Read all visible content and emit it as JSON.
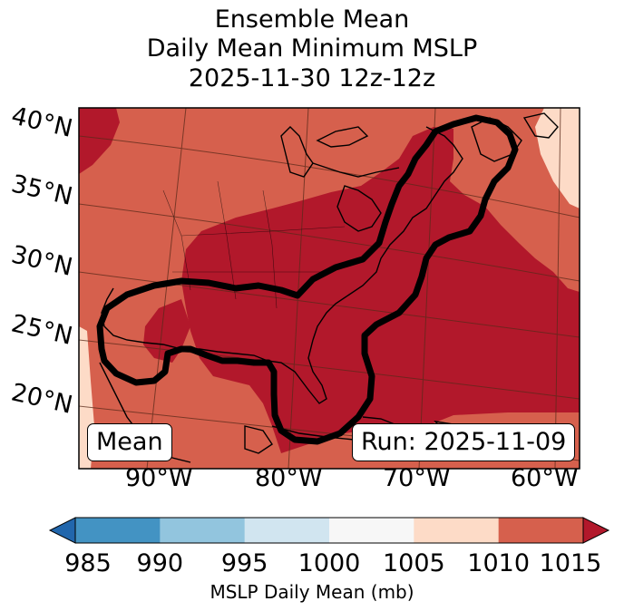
{
  "title": {
    "line1": "Ensemble Mean",
    "line2": "Daily Mean Minimum MSLP",
    "line3": "2025-11-30 12z-12z"
  },
  "map": {
    "lat_labels": [
      "40°N",
      "35°N",
      "30°N",
      "25°N",
      "20°N"
    ],
    "lon_labels": [
      "90°W",
      "80°W",
      "70°W",
      "60°W"
    ],
    "mean_box": "Mean",
    "run_box": "Run: 2025-11-09",
    "contour_level_mb": 1010
  },
  "colorbar": {
    "ticks": [
      "985",
      "990",
      "995",
      "1000",
      "1005",
      "1010",
      "1015"
    ],
    "label": "MSLP Daily Mean (mb)",
    "bins": [
      {
        "range": "<985",
        "color": "#2166ac"
      },
      {
        "range": "985-990",
        "color": "#4393c3"
      },
      {
        "range": "990-995",
        "color": "#92c5de"
      },
      {
        "range": "995-1000",
        "color": "#d1e5f0"
      },
      {
        "range": "1000-1005",
        "color": "#f7f7f7"
      },
      {
        "range": "1005-1010",
        "color": "#fddbc7"
      },
      {
        "range": "1010-1015",
        "color": "#d6604d"
      },
      {
        "range": ">1015",
        "color": "#b2182b"
      }
    ]
  },
  "colors": {
    "background_field": "#d6604d",
    "high_pressure_region": "#b2182b",
    "edge_region": "#fddbc7",
    "contour": "#000000"
  }
}
